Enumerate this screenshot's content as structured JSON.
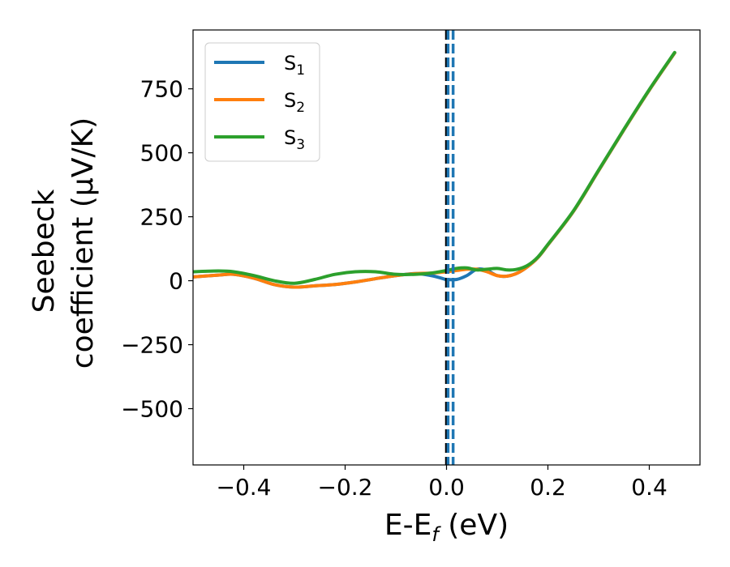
{
  "chart_data": {
    "type": "line",
    "xlabel": "E-E",
    "xlabel_sub": "f",
    "xlabel_unit": " (eV)",
    "ylabel_line1": "Seebeck",
    "ylabel_line2": "coefficient  (μV/K)",
    "xlim": [
      -0.5,
      0.5
    ],
    "ylim": [
      -720,
      980
    ],
    "xticks": [
      -0.4,
      -0.2,
      0.0,
      0.2,
      0.4
    ],
    "xtick_labels": [
      "−0.4",
      "−0.2",
      "0.0",
      "0.2",
      "0.4"
    ],
    "yticks": [
      -500,
      -250,
      0,
      250,
      500,
      750
    ],
    "ytick_labels": [
      "−500",
      "−250",
      "0",
      "250",
      "500",
      "750"
    ],
    "legend_position": "top-left",
    "grid": false,
    "vertical_lines": [
      {
        "x": 0.0,
        "color": "#000000",
        "style": "dashed"
      },
      {
        "x": 0.003,
        "color": "#1f77b4",
        "style": "dashed"
      },
      {
        "x": 0.013,
        "color": "#1f77b4",
        "style": "dashed"
      }
    ],
    "series": [
      {
        "name": "S",
        "sub": "1",
        "color": "#1f77b4",
        "x": [
          -0.5,
          -0.45,
          -0.42,
          -0.38,
          -0.34,
          -0.3,
          -0.26,
          -0.22,
          -0.18,
          -0.14,
          -0.1,
          -0.06,
          -0.03,
          -0.01,
          0.0,
          0.02,
          0.04,
          0.06,
          0.08,
          0.1,
          0.12,
          0.14,
          0.16,
          0.18,
          0.2,
          0.25,
          0.3,
          0.35,
          0.4,
          0.45
        ],
        "y": [
          15,
          22,
          25,
          10,
          -15,
          -25,
          -20,
          -15,
          -5,
          8,
          20,
          28,
          20,
          10,
          5,
          5,
          20,
          45,
          40,
          20,
          18,
          30,
          55,
          90,
          140,
          270,
          430,
          590,
          745,
          890
        ]
      },
      {
        "name": "S",
        "sub": "2",
        "color": "#ff7f0e",
        "x": [
          -0.5,
          -0.45,
          -0.42,
          -0.38,
          -0.34,
          -0.3,
          -0.26,
          -0.22,
          -0.18,
          -0.14,
          -0.1,
          -0.06,
          -0.03,
          0.0,
          0.02,
          0.04,
          0.06,
          0.08,
          0.1,
          0.12,
          0.14,
          0.16,
          0.18,
          0.2,
          0.25,
          0.3,
          0.35,
          0.4,
          0.45
        ],
        "y": [
          15,
          22,
          25,
          10,
          -15,
          -25,
          -20,
          -15,
          -5,
          8,
          20,
          28,
          30,
          35,
          40,
          45,
          45,
          35,
          20,
          18,
          30,
          55,
          90,
          140,
          270,
          430,
          590,
          745,
          890
        ]
      },
      {
        "name": "S",
        "sub": "3",
        "color": "#2ca02c",
        "x": [
          -0.5,
          -0.45,
          -0.42,
          -0.38,
          -0.34,
          -0.3,
          -0.26,
          -0.22,
          -0.18,
          -0.14,
          -0.1,
          -0.06,
          -0.03,
          0.0,
          0.02,
          0.04,
          0.06,
          0.08,
          0.1,
          0.12,
          0.14,
          0.16,
          0.18,
          0.2,
          0.25,
          0.3,
          0.35,
          0.4,
          0.45
        ],
        "y": [
          35,
          38,
          35,
          20,
          0,
          -10,
          5,
          25,
          35,
          35,
          25,
          25,
          30,
          40,
          48,
          50,
          42,
          45,
          48,
          42,
          45,
          60,
          92,
          142,
          272,
          432,
          592,
          747,
          892
        ]
      }
    ]
  }
}
